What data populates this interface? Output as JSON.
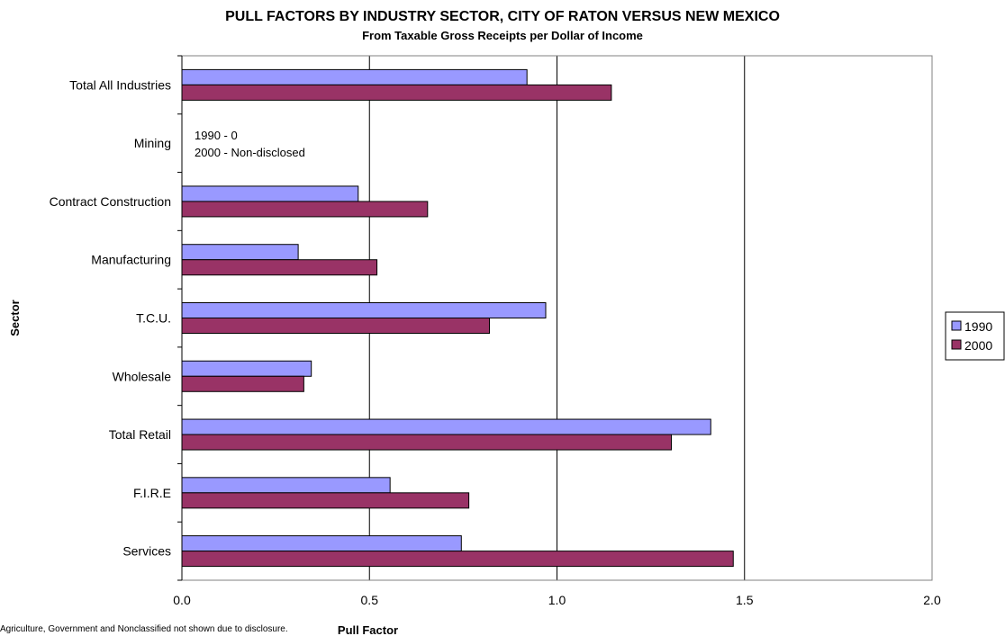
{
  "chart_data": {
    "type": "bar",
    "orientation": "horizontal",
    "title": "PULL FACTORS BY INDUSTRY SECTOR, CITY OF RATON VERSUS NEW MEXICO",
    "subtitle": "From Taxable Gross Receipts per Dollar of Income",
    "xlabel": "Pull Factor",
    "ylabel": "Sector",
    "xlim": [
      0,
      2
    ],
    "xticks": [
      "0.0",
      "0.5",
      "1.0",
      "1.5",
      "2.0"
    ],
    "xtick_values": [
      0,
      0.5,
      1.0,
      1.5,
      2.0
    ],
    "categories": [
      "Total All Industries",
      "Mining",
      "Contract Construction",
      "Manufacturing",
      "T.C.U.",
      "Wholesale",
      "Total Retail",
      "F.I.R.E",
      "Services"
    ],
    "series": [
      {
        "name": "1990",
        "color": "#9999ff",
        "values": [
          0.92,
          null,
          0.47,
          0.31,
          0.97,
          0.345,
          1.41,
          0.555,
          0.745
        ]
      },
      {
        "name": "2000",
        "color": "#993366",
        "values": [
          1.145,
          null,
          0.655,
          0.52,
          0.82,
          0.325,
          1.305,
          0.765,
          1.47
        ]
      }
    ],
    "annotations": [
      "1990 - 0",
      "2000 - Non-disclosed"
    ],
    "footnote": "Agriculture, Government and Nonclassified not shown due to disclosure.",
    "grid": "vertical",
    "legend_position": "right",
    "plot_background": "#ffffff",
    "border_color": "#808080"
  }
}
